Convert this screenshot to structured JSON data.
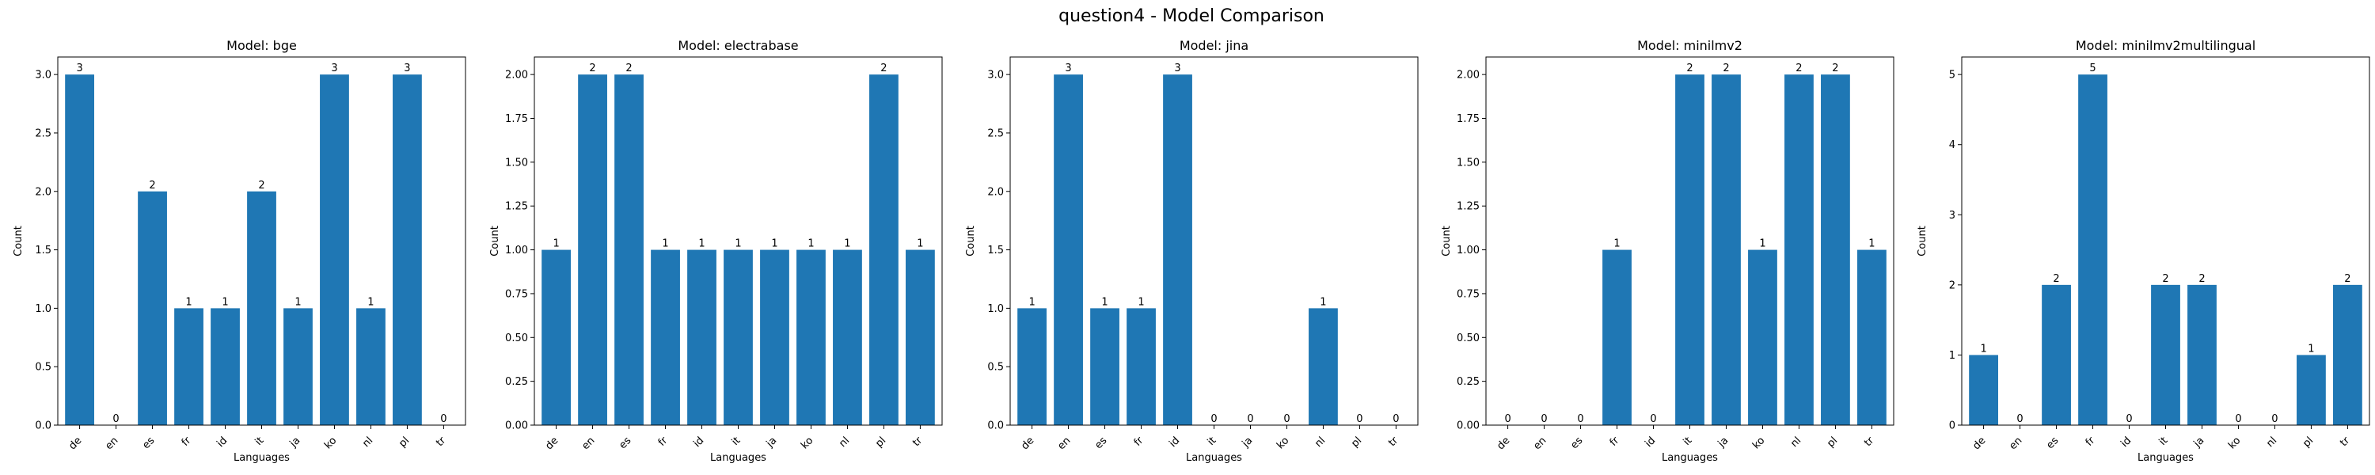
{
  "figure": {
    "title": "question4 - Model Comparison",
    "bar_color": "#1f77b4"
  },
  "chart_data": [
    {
      "type": "bar",
      "title": "Model: bge",
      "xlabel": "Languages",
      "ylabel": "Count",
      "categories": [
        "de",
        "en",
        "es",
        "fr",
        "id",
        "it",
        "ja",
        "ko",
        "nl",
        "pl",
        "tr"
      ],
      "values": [
        3,
        0,
        2,
        1,
        1,
        2,
        1,
        3,
        1,
        3,
        0
      ],
      "ylim": [
        0,
        3.15
      ],
      "yticks": [
        0.0,
        0.5,
        1.0,
        1.5,
        2.0,
        2.5,
        3.0
      ],
      "ytick_labels": [
        "0.0",
        "0.5",
        "1.0",
        "1.5",
        "2.0",
        "2.5",
        "3.0"
      ],
      "grid": false,
      "legend": "none"
    },
    {
      "type": "bar",
      "title": "Model: electrabase",
      "xlabel": "Languages",
      "ylabel": "Count",
      "categories": [
        "de",
        "en",
        "es",
        "fr",
        "id",
        "it",
        "ja",
        "ko",
        "nl",
        "pl",
        "tr"
      ],
      "values": [
        1,
        2,
        2,
        1,
        1,
        1,
        1,
        1,
        1,
        2,
        1
      ],
      "ylim": [
        0,
        2.1
      ],
      "yticks": [
        0.0,
        0.25,
        0.5,
        0.75,
        1.0,
        1.25,
        1.5,
        1.75,
        2.0
      ],
      "ytick_labels": [
        "0.00",
        "0.25",
        "0.50",
        "0.75",
        "1.00",
        "1.25",
        "1.50",
        "1.75",
        "2.00"
      ],
      "grid": false,
      "legend": "none"
    },
    {
      "type": "bar",
      "title": "Model: jina",
      "xlabel": "Languages",
      "ylabel": "Count",
      "categories": [
        "de",
        "en",
        "es",
        "fr",
        "id",
        "it",
        "ja",
        "ko",
        "nl",
        "pl",
        "tr"
      ],
      "values": [
        1,
        3,
        1,
        1,
        3,
        0,
        0,
        0,
        1,
        0,
        0
      ],
      "ylim": [
        0,
        3.15
      ],
      "yticks": [
        0.0,
        0.5,
        1.0,
        1.5,
        2.0,
        2.5,
        3.0
      ],
      "ytick_labels": [
        "0.0",
        "0.5",
        "1.0",
        "1.5",
        "2.0",
        "2.5",
        "3.0"
      ],
      "grid": false,
      "legend": "none"
    },
    {
      "type": "bar",
      "title": "Model: minilmv2",
      "xlabel": "Languages",
      "ylabel": "Count",
      "categories": [
        "de",
        "en",
        "es",
        "fr",
        "id",
        "it",
        "ja",
        "ko",
        "nl",
        "pl",
        "tr"
      ],
      "values": [
        0,
        0,
        0,
        1,
        0,
        2,
        2,
        1,
        2,
        2,
        1
      ],
      "ylim": [
        0,
        2.1
      ],
      "yticks": [
        0.0,
        0.25,
        0.5,
        0.75,
        1.0,
        1.25,
        1.5,
        1.75,
        2.0
      ],
      "ytick_labels": [
        "0.00",
        "0.25",
        "0.50",
        "0.75",
        "1.00",
        "1.25",
        "1.50",
        "1.75",
        "2.00"
      ],
      "grid": false,
      "legend": "none"
    },
    {
      "type": "bar",
      "title": "Model: minilmv2multilingual",
      "xlabel": "Languages",
      "ylabel": "Count",
      "categories": [
        "de",
        "en",
        "es",
        "fr",
        "id",
        "it",
        "ja",
        "ko",
        "nl",
        "pl",
        "tr"
      ],
      "values": [
        1,
        0,
        2,
        5,
        0,
        2,
        2,
        0,
        0,
        1,
        2
      ],
      "ylim": [
        0,
        5.25
      ],
      "yticks": [
        0,
        1,
        2,
        3,
        4,
        5
      ],
      "ytick_labels": [
        "0",
        "1",
        "2",
        "3",
        "4",
        "5"
      ],
      "grid": false,
      "legend": "none"
    }
  ]
}
